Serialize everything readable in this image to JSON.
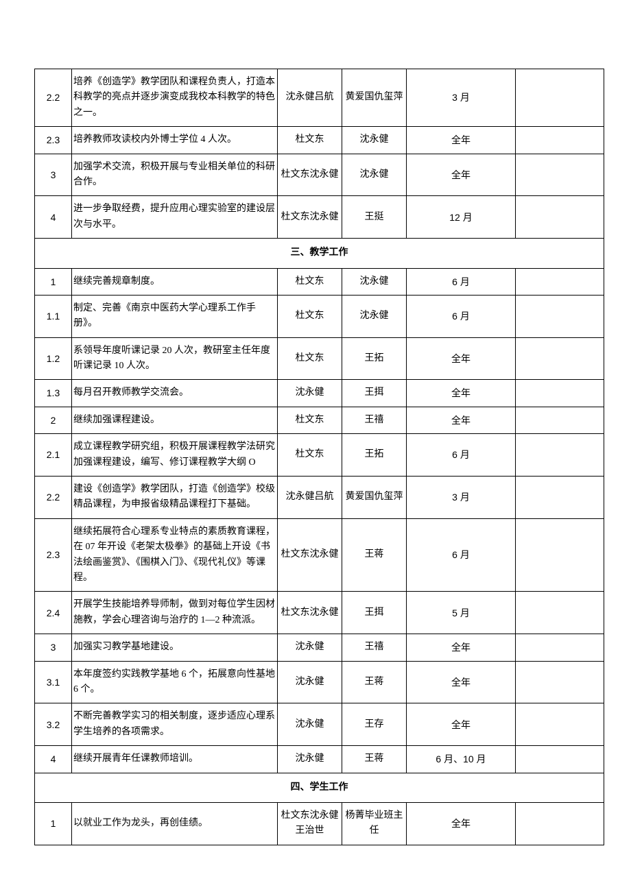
{
  "sections": [
    {
      "rows": [
        {
          "idx": "2.2",
          "desc": "培养《创造学》教学团队和课程负责人，打造本科教学的亮点并逐步演变成我校本科教学的特色之一。",
          "lead": "沈永健吕航",
          "exec": "黄爱国仇玺萍",
          "time": "3 月",
          "note": ""
        },
        {
          "idx": "2.3",
          "desc": "培养教师攻读校内外博士学位 4 人次。",
          "lead": "杜文东",
          "exec": "沈永健",
          "time": "全年",
          "note": ""
        },
        {
          "idx": "3",
          "desc": "加强学术交流，积极开展与专业相关单位的科研合作。",
          "lead": "杜文东沈永健",
          "exec": "沈永健",
          "time": "全年",
          "note": ""
        },
        {
          "idx": "4",
          "desc": "进一步争取经费，提升应用心理实验室的建设层次与水平。",
          "lead": "杜文东沈永健",
          "exec": "王挺",
          "time": "12 月",
          "note": ""
        }
      ]
    },
    {
      "title": "三、教学工作",
      "rows": [
        {
          "idx": "1",
          "desc": "继续完善规章制度。",
          "lead": "杜文东",
          "exec": "沈永健",
          "time": "6 月",
          "note": ""
        },
        {
          "idx": "1.1",
          "desc": "制定、完善《南京中医药大学心理系工作手册》。",
          "lead": "杜文东",
          "exec": "沈永健",
          "time": "6 月",
          "note": ""
        },
        {
          "idx": "1.2",
          "desc": "系领导年度听课记录 20 人次，教研室主任年度听课记录 10 人次。",
          "lead": "杜文东",
          "exec": "王拓",
          "time": "全年",
          "note": ""
        },
        {
          "idx": "1.3",
          "desc": "每月召开教师教学交流会。",
          "lead": "沈永健",
          "exec": "王挕",
          "time": "全年",
          "note": ""
        },
        {
          "idx": "2",
          "desc": "继续加强课程建设。",
          "lead": "杜文东",
          "exec": "王禧",
          "time": "全年",
          "note": ""
        },
        {
          "idx": "2.1",
          "desc": "成立课程教学研究组，积极开展课程教学法研究加强课程建设，编写、修订课程教学大纲 O",
          "lead": "杜文东",
          "exec": "王拓",
          "time": "6 月",
          "note": ""
        },
        {
          "idx": "2.2",
          "desc": "建设《创造学》教学团队，打造《创造学》校级精品课程，为申报省级精品课程打下基础。",
          "lead": "沈永健吕航",
          "exec": "黄爱国仇玺萍",
          "time": "3 月",
          "note": ""
        },
        {
          "idx": "2.3",
          "desc": "继续拓展符合心理系专业特点的素质教育课程，在 07 年开设《老架太极拳》的基础上开设《书法绘画鉴赏》、《围棋入门》、《现代礼仪》等课程。",
          "lead": "杜文东沈永健",
          "exec": "王蒋",
          "time": "6 月",
          "note": ""
        },
        {
          "idx": "2.4",
          "desc": "开展学生技能培养导师制，做到对每位学生因材施教，学会心理咨询与治疗的 1—2 种流派。",
          "lead": "杜文东沈永健",
          "exec": "王挕",
          "time": "5 月",
          "note": ""
        },
        {
          "idx": "3",
          "desc": "加强实习教学基地建设。",
          "lead": "沈永健",
          "exec": "王禧",
          "time": "全年",
          "note": ""
        },
        {
          "idx": "3.1",
          "desc": "本年度签约实践教学基地 6 个，拓展意向性基地6 个。",
          "lead": "沈永健",
          "exec": "王蒋",
          "time": "全年",
          "note": ""
        },
        {
          "idx": "3.2",
          "desc": "不断完善教学实习的相关制度，逐步适应心理系学生培养的各项需求。",
          "lead": "沈永健",
          "exec": "王存",
          "time": "全年",
          "note": ""
        },
        {
          "idx": "4",
          "desc": "继续开展青年任课教师培训。",
          "lead": "沈永健",
          "exec": "王蒋",
          "time": "6 月、10 月",
          "note": ""
        }
      ]
    },
    {
      "title": "四、学生工作",
      "rows": [
        {
          "idx": "1",
          "desc": "以就业工作为龙头，再创佳绩。",
          "lead": "杜文东沈永健王治世",
          "exec": "杨菁毕业班主任",
          "time": "全年",
          "note": ""
        }
      ]
    }
  ]
}
